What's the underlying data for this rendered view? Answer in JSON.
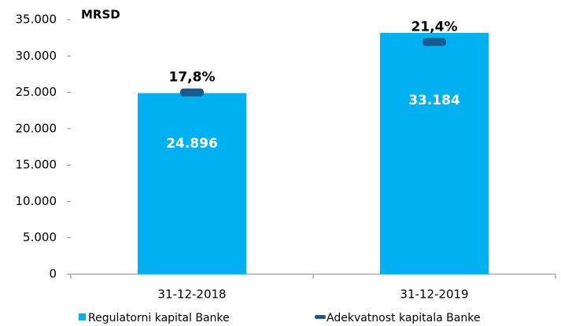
{
  "chart_data": {
    "type": "bar",
    "title": "MRSD",
    "categories": [
      "31-12-2018",
      "31-12-2019"
    ],
    "series": [
      {
        "name": "Regulatorni kapital Banke",
        "color": "#00b0f0",
        "values": [
          24896,
          33184
        ],
        "value_labels": [
          "24.896",
          "33.184"
        ]
      },
      {
        "name": "Adekvatnost kapitala Banke",
        "color": "#1a5b8c",
        "axis": "y2",
        "values": [
          17.8,
          21.4
        ],
        "value_labels": [
          "17,8%",
          "21,4%"
        ]
      }
    ],
    "ylim": [
      0,
      35000
    ],
    "yticks": [
      {
        "value": 0,
        "label": "0"
      },
      {
        "value": 5000,
        "label": "5.000"
      },
      {
        "value": 10000,
        "label": "10.000"
      },
      {
        "value": 15000,
        "label": "15.000"
      },
      {
        "value": 20000,
        "label": "20.000"
      },
      {
        "value": 25000,
        "label": "25.000"
      },
      {
        "value": 30000,
        "label": "30.000"
      },
      {
        "value": 35000,
        "label": "35.000"
      }
    ],
    "y2lim": [
      4.8,
      23.0
    ],
    "grid": false
  }
}
